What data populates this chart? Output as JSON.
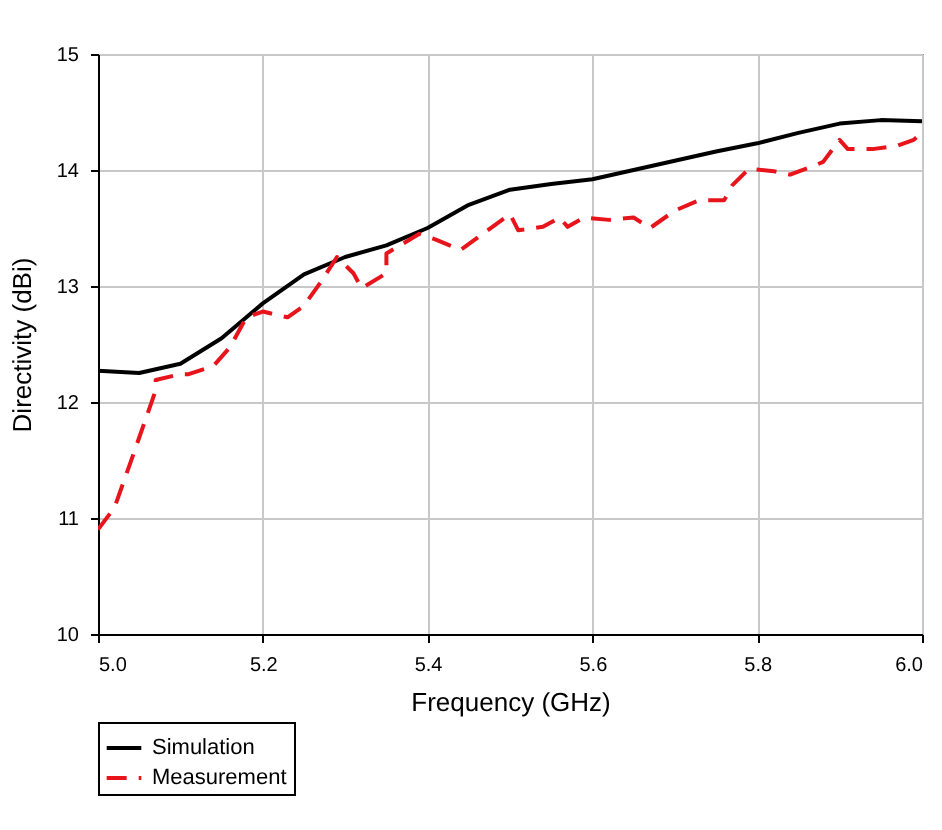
{
  "chart_data": {
    "type": "line",
    "xlabel": "Frequency (GHz)",
    "ylabel": "Directivity (dBi)",
    "xlim": [
      5.0,
      6.0
    ],
    "xticks": [
      {
        "value": 5.0,
        "label": "5.0"
      },
      {
        "value": 5.2,
        "label": "5.2"
      },
      {
        "value": 5.4,
        "label": "5.4"
      },
      {
        "value": 5.6,
        "label": "5.6"
      },
      {
        "value": 5.8,
        "label": "5.8"
      },
      {
        "value": 6.0,
        "label": "6.0"
      }
    ],
    "ylim": [
      10,
      15
    ],
    "yticks": [
      10,
      11,
      12,
      13,
      14,
      15
    ],
    "grid": true,
    "legend": "bottom left",
    "marker": "none",
    "series": [
      {
        "name": "Simulation",
        "color": "#000000",
        "line_style": "solid",
        "x": [
          5.0,
          5.05,
          5.1,
          5.15,
          5.2,
          5.25,
          5.3,
          5.35,
          5.4,
          5.45,
          5.5,
          5.55,
          5.6,
          5.65,
          5.7,
          5.75,
          5.8,
          5.85,
          5.9,
          5.95,
          6.0
        ],
        "values": [
          12.27,
          12.25,
          12.33,
          12.55,
          12.85,
          13.1,
          13.25,
          13.35,
          13.5,
          13.7,
          13.83,
          13.88,
          13.92,
          14.0,
          14.08,
          14.16,
          14.23,
          14.32,
          14.4,
          14.43,
          14.42
        ]
      },
      {
        "name": "Measurement",
        "color": "#e8141c",
        "line_style": "dashed",
        "x": [
          5.0,
          5.02,
          5.04,
          5.07,
          5.07,
          5.1,
          5.11,
          5.14,
          5.16,
          5.18,
          5.2,
          5.23,
          5.25,
          5.27,
          5.29,
          5.31,
          5.32,
          5.35,
          5.35,
          5.39,
          5.41,
          5.44,
          5.5,
          5.51,
          5.54,
          5.56,
          5.57,
          5.59,
          5.62,
          5.65,
          5.67,
          5.7,
          5.73,
          5.76,
          5.77,
          5.79,
          5.82,
          5.84,
          5.87,
          5.88,
          5.9,
          5.91,
          5.94,
          5.97,
          5.99,
          6.0
        ],
        "values": [
          10.9,
          11.09,
          11.49,
          12.1,
          12.19,
          12.24,
          12.24,
          12.31,
          12.47,
          12.73,
          12.78,
          12.73,
          12.83,
          13.03,
          13.25,
          13.11,
          12.98,
          13.11,
          13.28,
          13.45,
          13.4,
          13.31,
          13.62,
          13.48,
          13.51,
          13.59,
          13.51,
          13.59,
          13.57,
          13.59,
          13.5,
          13.65,
          13.74,
          13.74,
          13.87,
          14.01,
          13.99,
          13.96,
          14.04,
          14.07,
          14.26,
          14.18,
          14.18,
          14.21,
          14.26,
          14.32
        ]
      }
    ]
  }
}
